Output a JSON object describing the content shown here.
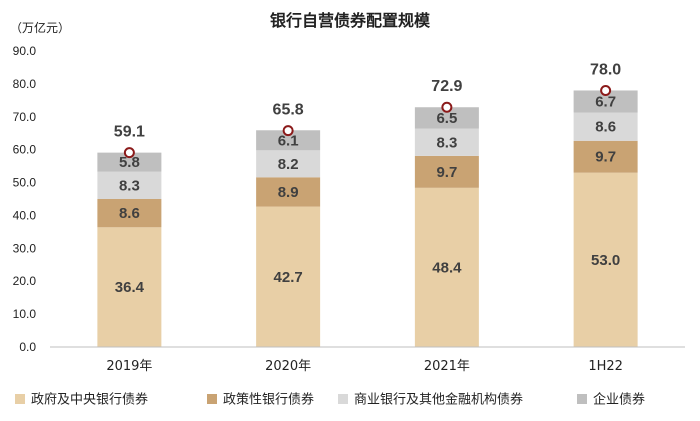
{
  "chart_data": {
    "type": "bar",
    "stacked": true,
    "title": "银行自营债券配置规模",
    "unit_label": "（万亿元）",
    "categories": [
      "2019年",
      "2020年",
      "2021年",
      "1H22"
    ],
    "series": [
      {
        "name": "政府及中央银行债券",
        "values": [
          36.4,
          42.7,
          48.4,
          53.0
        ],
        "labels": [
          "36.4",
          "42.7",
          "48.4",
          "53.0"
        ],
        "color": "#E8CFA6"
      },
      {
        "name": "政策性银行债券",
        "values": [
          8.6,
          8.9,
          9.7,
          9.7
        ],
        "labels": [
          "8.6",
          "8.9",
          "9.7",
          "9.7"
        ],
        "color": "#C9A373"
      },
      {
        "name": "商业银行及其他金融机构债券",
        "values": [
          8.3,
          8.2,
          8.3,
          8.6
        ],
        "labels": [
          "8.3",
          "8.2",
          "8.3",
          "8.6"
        ],
        "color": "#D9D9D9"
      },
      {
        "name": "企业债券",
        "values": [
          5.8,
          6.1,
          6.5,
          6.7
        ],
        "labels": [
          "5.8",
          "6.1",
          "6.5",
          "6.7"
        ],
        "color": "#BFBFBF"
      }
    ],
    "totals": [
      59.1,
      65.8,
      72.9,
      78.0
    ],
    "total_labels": [
      "59.1",
      "65.8",
      "72.9",
      "78.0"
    ],
    "ylim": [
      0,
      90
    ],
    "yticks": [
      "0.0",
      "10.0",
      "20.0",
      "30.0",
      "40.0",
      "50.0",
      "60.0",
      "70.0",
      "80.0",
      "90.0"
    ],
    "marker_color": "#8B1A1A",
    "legend_position": "bottom",
    "grid": false
  }
}
